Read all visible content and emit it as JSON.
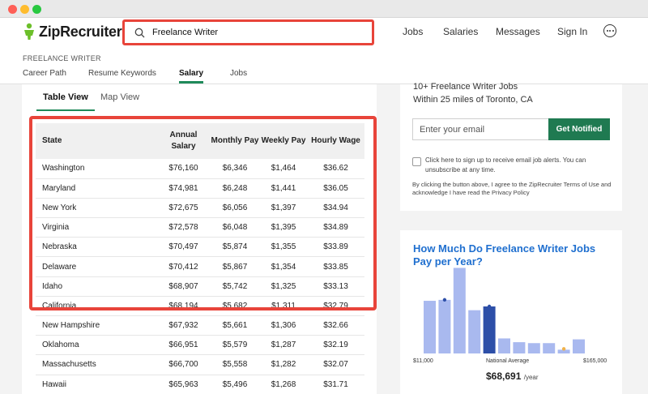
{
  "brand": {
    "name": "ZipRecruiter"
  },
  "search": {
    "value": "Freelance Writer"
  },
  "nav": {
    "jobs": "Jobs",
    "salaries": "Salaries",
    "messages": "Messages",
    "signin": "Sign In"
  },
  "breadcrumb": "FREELANCE WRITER",
  "subtabs": [
    "Career Path",
    "Resume Keywords",
    "Salary",
    "Jobs"
  ],
  "views": [
    "Table View",
    "Map View"
  ],
  "table": {
    "headers": [
      "State",
      "Annual Salary",
      "Monthly Pay",
      "Weekly Pay",
      "Hourly Wage"
    ],
    "rows": [
      [
        "Washington",
        "$76,160",
        "$6,346",
        "$1,464",
        "$36.62"
      ],
      [
        "Maryland",
        "$74,981",
        "$6,248",
        "$1,441",
        "$36.05"
      ],
      [
        "New York",
        "$72,675",
        "$6,056",
        "$1,397",
        "$34.94"
      ],
      [
        "Virginia",
        "$72,578",
        "$6,048",
        "$1,395",
        "$34.89"
      ],
      [
        "Nebraska",
        "$70,497",
        "$5,874",
        "$1,355",
        "$33.89"
      ],
      [
        "Delaware",
        "$70,412",
        "$5,867",
        "$1,354",
        "$33.85"
      ],
      [
        "Idaho",
        "$68,907",
        "$5,742",
        "$1,325",
        "$33.13"
      ],
      [
        "California",
        "$68,194",
        "$5,682",
        "$1,311",
        "$32.79"
      ],
      [
        "New Hampshire",
        "$67,932",
        "$5,661",
        "$1,306",
        "$32.66"
      ],
      [
        "Oklahoma",
        "$66,951",
        "$5,579",
        "$1,287",
        "$32.19"
      ],
      [
        "Massachusetts",
        "$66,700",
        "$5,558",
        "$1,282",
        "$32.07"
      ],
      [
        "Hawaii",
        "$65,963",
        "$5,496",
        "$1,268",
        "$31.71"
      ]
    ]
  },
  "alerts": {
    "title": "10+ Freelance Writer Jobs",
    "subtitle": "Within 25 miles of Toronto, CA",
    "email_placeholder": "Enter your email",
    "button": "Get Notified",
    "checkbox_label": "Click here to sign up to receive email job alerts. You can unsubscribe at any time.",
    "disclaimer": "By clicking the button above, I agree to the ZipRecruiter Terms of Use and acknowledge I have read the Privacy Policy"
  },
  "chart": {
    "title": "How Much Do Freelance Writer Jobs Pay per Year?",
    "min_label": "$11,000",
    "avg_label": "National Average",
    "max_label": "$165,000",
    "avg_value": "$68,691",
    "avg_unit": "/year",
    "colors": {
      "bar": "#a9b9ef",
      "highlight": "#2d4fa8",
      "title": "#1f6fcf"
    }
  },
  "chart_data": {
    "type": "bar",
    "title": "How Much Do Freelance Writer Jobs Pay per Year?",
    "xlim": [
      11000,
      165000
    ],
    "values": [
      56,
      57,
      91,
      46,
      50,
      16,
      12,
      11,
      11,
      4,
      15
    ],
    "highlight_index": 4,
    "average": 68691
  }
}
